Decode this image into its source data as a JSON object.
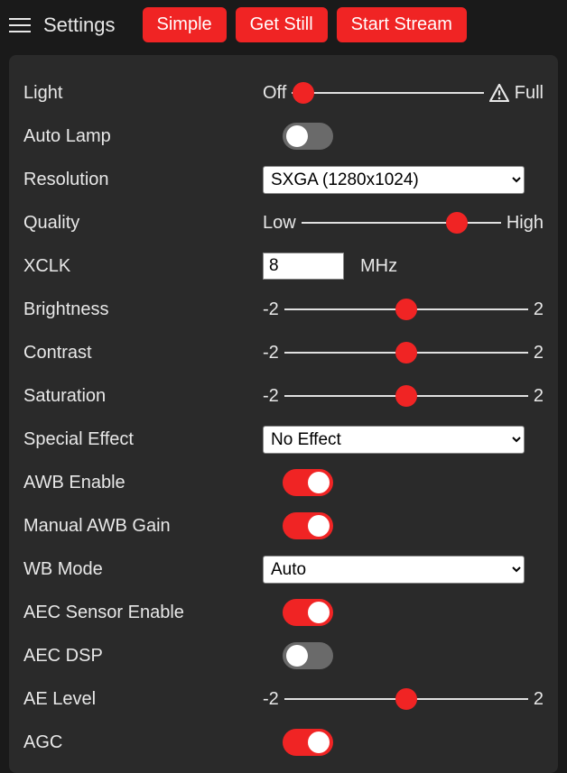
{
  "colors": {
    "accent": "#f02424",
    "bg": "#1a1a1a",
    "panel": "#2a2a2a",
    "text": "#e8e8e8",
    "toggle_off": "#6a6a6a"
  },
  "header": {
    "title": "Settings",
    "buttons": {
      "simple": "Simple",
      "get_still": "Get Still",
      "start_stream": "Start Stream"
    }
  },
  "controls": {
    "light": {
      "label": "Light",
      "min_label": "Off",
      "max_label": "Full",
      "value_pct": 6
    },
    "auto_lamp": {
      "label": "Auto Lamp",
      "on": false
    },
    "resolution": {
      "label": "Resolution",
      "selected": "SXGA (1280x1024)",
      "options": [
        "SXGA (1280x1024)"
      ]
    },
    "quality": {
      "label": "Quality",
      "min_label": "Low",
      "max_label": "High",
      "value_pct": 78
    },
    "xclk": {
      "label": "XCLK",
      "value": "8",
      "unit": "MHz"
    },
    "brightness": {
      "label": "Brightness",
      "min_label": "-2",
      "max_label": "2",
      "value_pct": 50
    },
    "contrast": {
      "label": "Contrast",
      "min_label": "-2",
      "max_label": "2",
      "value_pct": 50
    },
    "saturation": {
      "label": "Saturation",
      "min_label": "-2",
      "max_label": "2",
      "value_pct": 50
    },
    "special_effect": {
      "label": "Special Effect",
      "selected": "No Effect",
      "options": [
        "No Effect"
      ]
    },
    "awb_enable": {
      "label": "AWB Enable",
      "on": true
    },
    "manual_awb_gain": {
      "label": "Manual AWB Gain",
      "on": true
    },
    "wb_mode": {
      "label": "WB Mode",
      "selected": "Auto",
      "options": [
        "Auto"
      ]
    },
    "aec_sensor": {
      "label": "AEC Sensor Enable",
      "on": true
    },
    "aec_dsp": {
      "label": "AEC DSP",
      "on": false
    },
    "ae_level": {
      "label": "AE Level",
      "min_label": "-2",
      "max_label": "2",
      "value_pct": 50
    },
    "agc": {
      "label": "AGC",
      "on": true
    }
  }
}
